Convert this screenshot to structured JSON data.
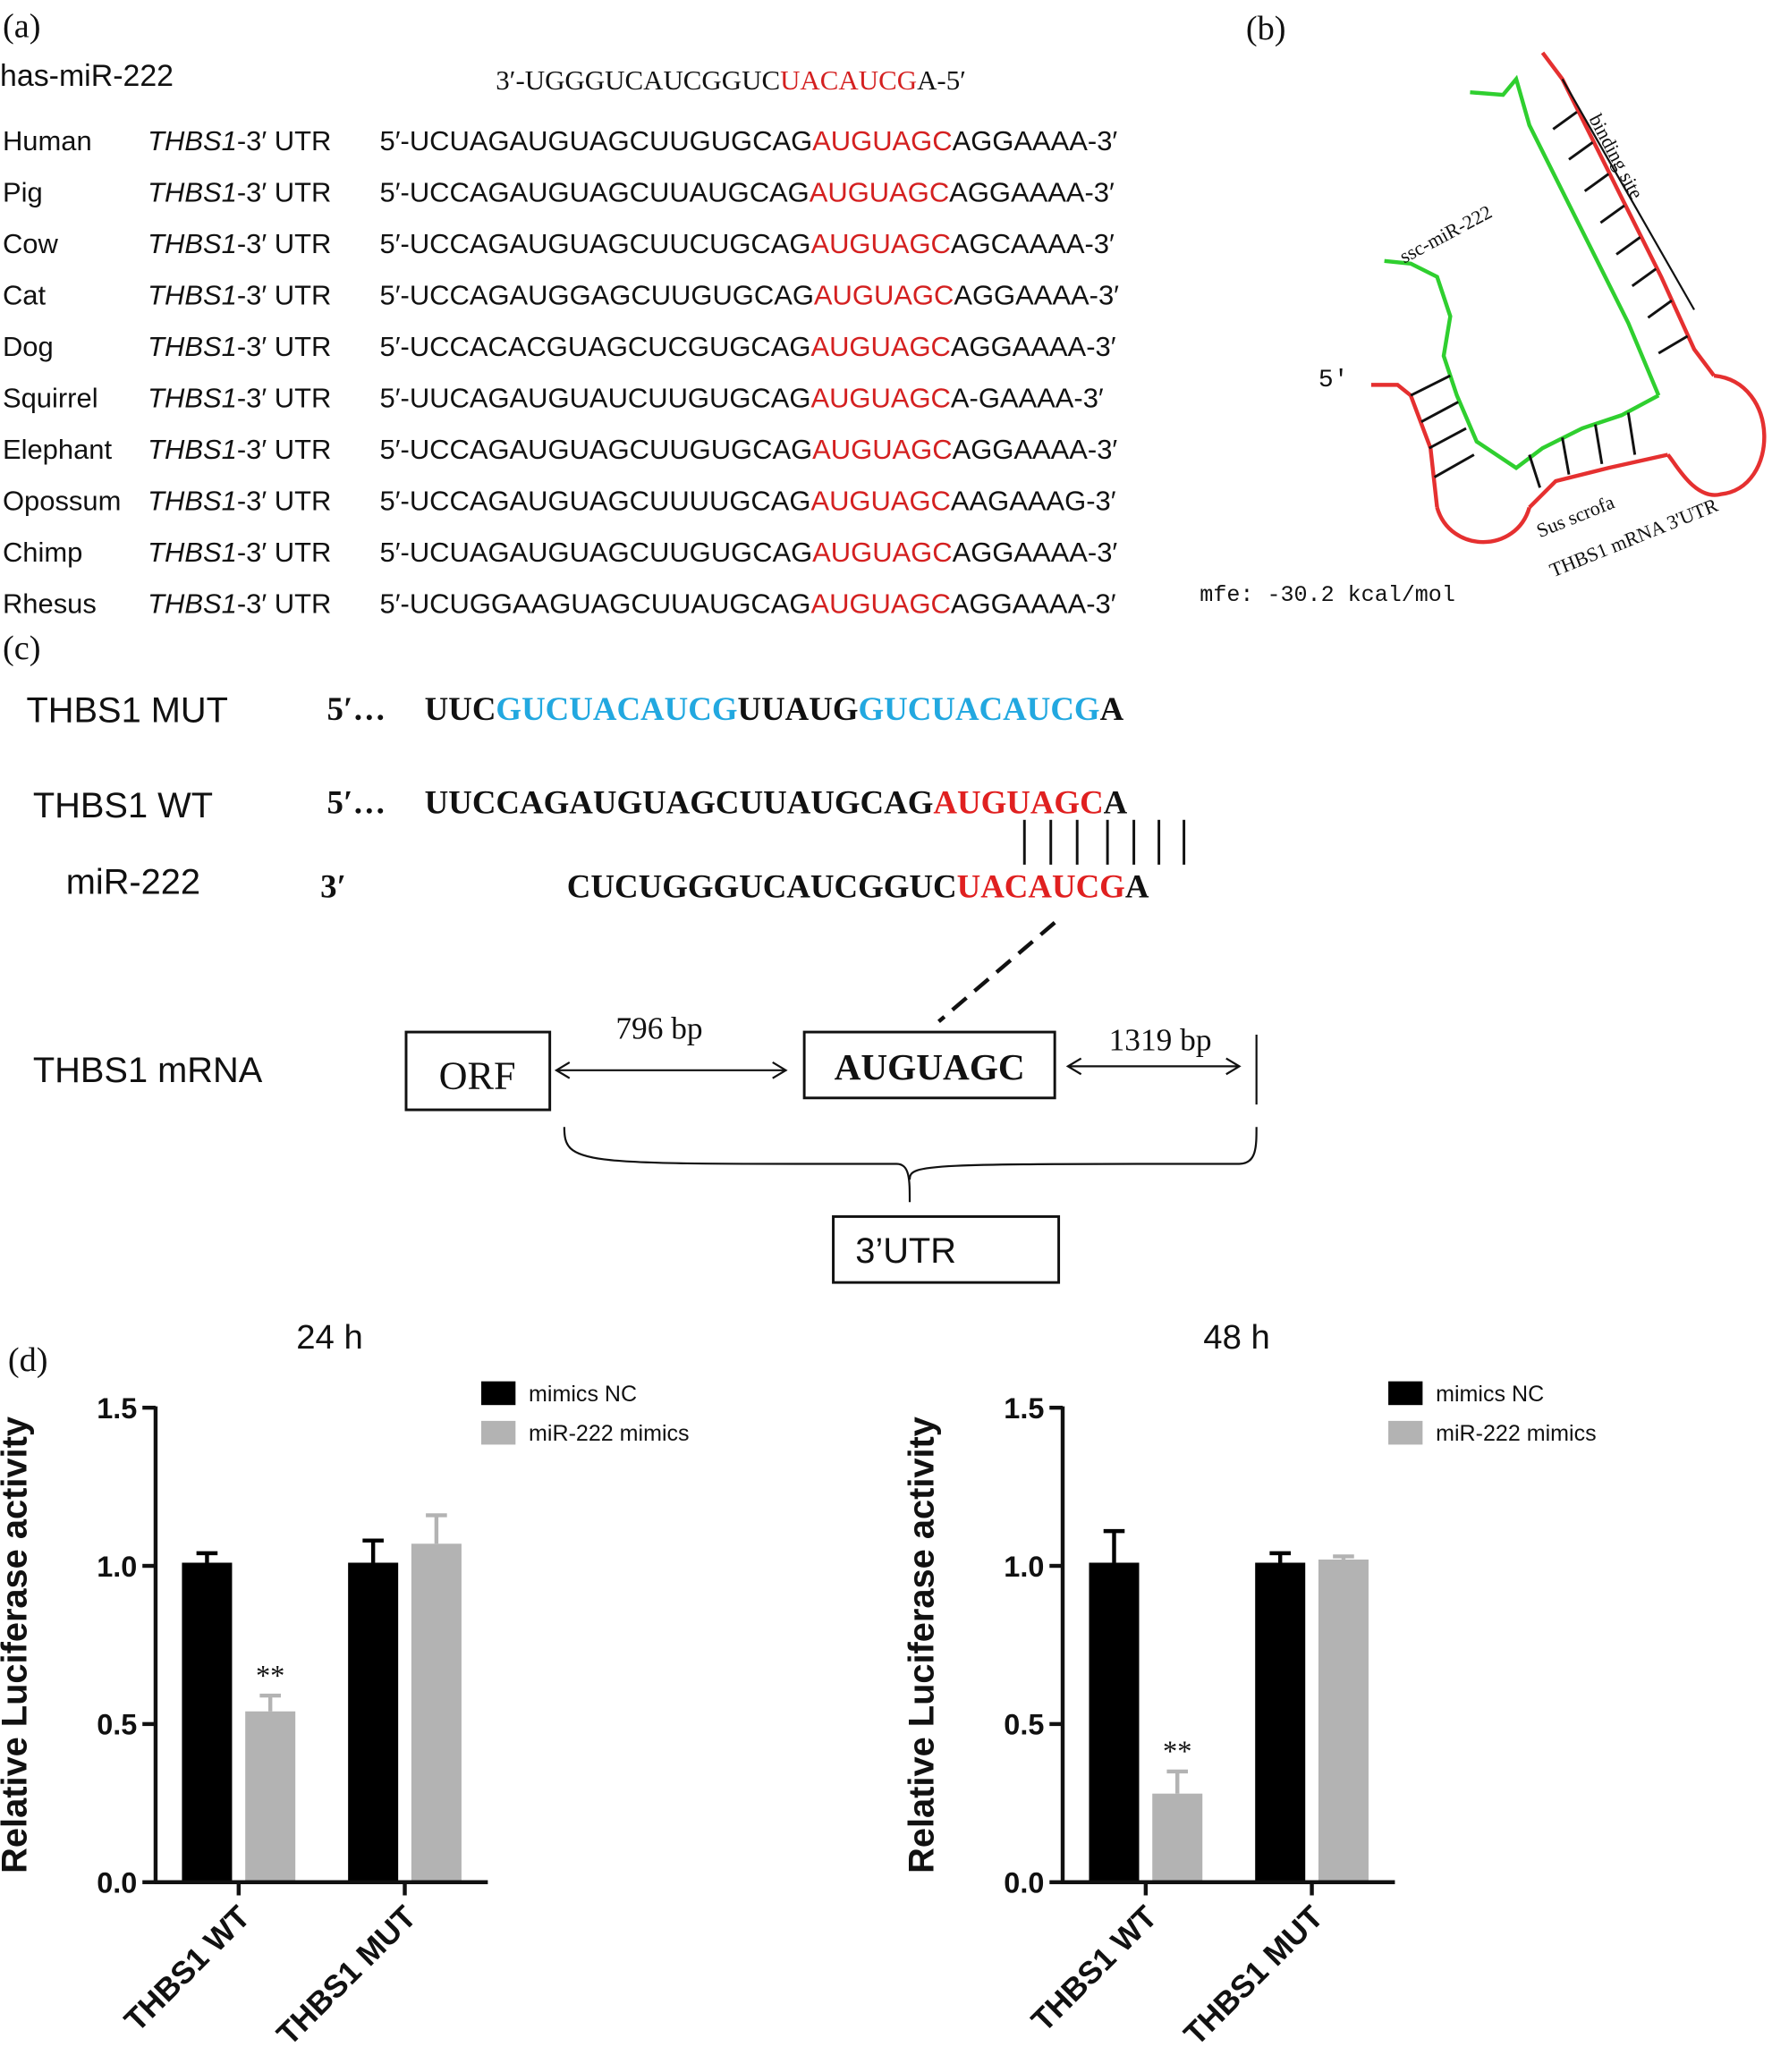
{
  "panel_a": {
    "label": "(a)",
    "mirna": {
      "name": "has-miR-222",
      "pre": "3′-UGGGUCAUCGGUC",
      "hl": "UACAUCG",
      "post": "A-5′"
    },
    "rows": [
      {
        "species": "Human",
        "gene": "THBS1",
        "utr": "-3′ UTR",
        "pre": "5′-UCUAGAUGUAGCUUGUGCAG",
        "hl": "AUGUAGC",
        "post": "AGGAAAA-3′"
      },
      {
        "species": "Pig",
        "gene": "THBS1",
        "utr": "-3′ UTR",
        "pre": "5′-UCCAGAUGUAGCUUAUGCAG",
        "hl": "AUGUAGC",
        "post": "AGGAAAA-3′"
      },
      {
        "species": "Cow",
        "gene": "THBS1",
        "utr": "-3′ UTR",
        "pre": "5′-UCCAGAUGUAGCUUCUGCAG",
        "hl": "AUGUAGC",
        "post": "AGCAAAA-3′"
      },
      {
        "species": "Cat",
        "gene": "THBS1",
        "utr": "-3′ UTR",
        "pre": "5′-UCCAGAUGGAGCUUGUGCAG",
        "hl": "AUGUAGC",
        "post": "AGGAAAA-3′"
      },
      {
        "species": "Dog",
        "gene": "THBS1",
        "utr": "-3′ UTR",
        "pre": "5′-UCCACACGUAGCUCGUGCAG",
        "hl": "AUGUAGC",
        "post": "AGGAAAA-3′"
      },
      {
        "species": "Squirrel",
        "gene": "THBS1",
        "utr": "-3′ UTR",
        "pre": "5′-UUCAGAUGUAUCUUGUGCAG",
        "hl": "AUGUAGC",
        "post": "A-GAAAA-3′"
      },
      {
        "species": "Elephant",
        "gene": "THBS1",
        "utr": "-3′ UTR",
        "pre": "5′-UCCAGAUGUAGCUUGUGCAG",
        "hl": "AUGUAGC",
        "post": "AGGAAAA-3′"
      },
      {
        "species": "Opossum",
        "gene": "THBS1",
        "utr": "-3′ UTR",
        "pre": "5′-UCCAGAUGUAGCUUUUGCAG",
        "hl": "AUGUAGC",
        "post": "AAGAAAG-3′"
      },
      {
        "species": "Chimp",
        "gene": "THBS1",
        "utr": "-3′ UTR",
        "pre": "5′-UCUAGAUGUAGCUUGUGCAG",
        "hl": "AUGUAGC",
        "post": "AGGAAAA-3′"
      },
      {
        "species": "Rhesus",
        "gene": "THBS1",
        "utr": "-3′ UTR",
        "pre": "5′-UCUGGAAGUAGCUUAUGCAG",
        "hl": "AUGUAGC",
        "post": "AGGAAAA-3′"
      }
    ]
  },
  "panel_b": {
    "label": "(b)",
    "binding_site": "binding site",
    "mirna": "ssc-miR-222",
    "five_prime": "5′",
    "species": "Sus scrofa",
    "target": "THBS1 mRNA 3'UTR",
    "mfe": "mfe: -30.2 kcal/mol"
  },
  "panel_c": {
    "label": "(c)",
    "mut": {
      "name": "THBS1 MUT",
      "prefix": "5′…",
      "segments": [
        {
          "text": "UUC",
          "hl": false
        },
        {
          "text": "GUCUACAUCG",
          "hl": true
        },
        {
          "text": "UUAUG",
          "hl": false
        },
        {
          "text": "GUCUACAUCG",
          "hl": true
        },
        {
          "text": "A",
          "hl": false
        }
      ]
    },
    "wt": {
      "name": "THBS1 WT",
      "prefix": "5′…",
      "segments": [
        {
          "text": "UUCCAGAUGUAGCUUAUGCAG",
          "hl": false
        },
        {
          "text": "AUGUAGC",
          "hl": true
        },
        {
          "text": "A",
          "hl": false
        }
      ]
    },
    "mir": {
      "name": "miR-222",
      "prefix": "3′",
      "segments": [
        {
          "text": "CUCUGGGUCAUCGGUC",
          "hl": false
        },
        {
          "text": "UACAUCG",
          "hl": true
        },
        {
          "text": "A",
          "hl": false
        }
      ]
    },
    "mrna": {
      "name": "THBS1 mRNA",
      "orf": "ORF",
      "site": "AUGUAGC",
      "left_gap": "796  bp",
      "right_gap": "1319  bp",
      "utr": "3’UTR"
    }
  },
  "panel_d_label": "(d)",
  "chart_data": [
    {
      "type": "bar",
      "title": "24 h",
      "y_label": "Relative Luciferase activity",
      "categories": [
        "THBS1 WT",
        "THBS1 MUT"
      ],
      "series": [
        {
          "name": "mimics NC",
          "color": "#000000",
          "values": [
            1.01,
            1.01
          ],
          "errors": [
            0.03,
            0.07
          ]
        },
        {
          "name": "miR-222 mimics",
          "color": "#b3b3b3",
          "values": [
            0.54,
            1.07
          ],
          "errors": [
            0.05,
            0.09
          ],
          "significance": [
            "**",
            null
          ]
        }
      ],
      "ylim": [
        0,
        1.5
      ],
      "yticks": [
        {
          "value": 0,
          "label": "0.0"
        },
        0.5,
        {
          "value": 1,
          "label": "1.0"
        },
        1.5
      ],
      "legend": "upper right"
    },
    {
      "type": "bar",
      "title": "48 h",
      "y_label": "Relative Luciferase activity",
      "categories": [
        "THBS1 WT",
        "THBS1 MUT"
      ],
      "series": [
        {
          "name": "mimics NC",
          "color": "#000000",
          "values": [
            1.01,
            1.01
          ],
          "errors": [
            0.1,
            0.03
          ]
        },
        {
          "name": "miR-222 mimics",
          "color": "#b3b3b3",
          "values": [
            0.28,
            1.02
          ],
          "errors": [
            0.07,
            0.01
          ],
          "significance": [
            "**",
            null
          ]
        }
      ],
      "ylim": [
        0,
        1.5
      ],
      "yticks": [
        {
          "value": 0,
          "label": "0.0"
        },
        0.5,
        {
          "value": 1,
          "label": "1.0"
        },
        1.5
      ],
      "legend": "upper right"
    }
  ]
}
